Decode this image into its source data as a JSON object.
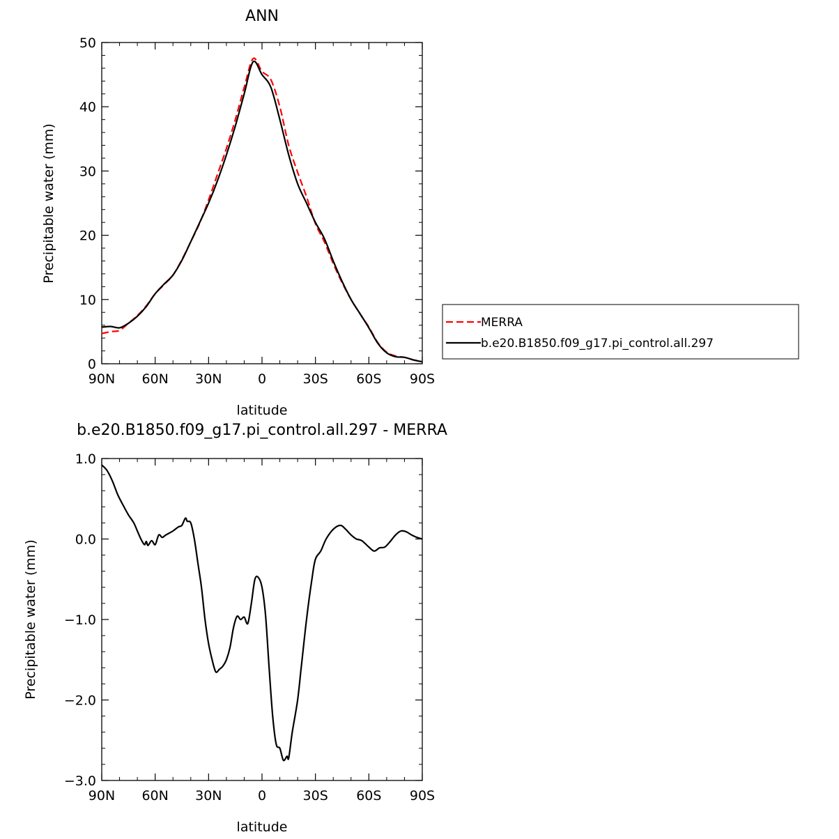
{
  "chart_data": [
    {
      "type": "line",
      "title": "ANN",
      "xlabel": "latitude",
      "ylabel": "Precipitable water (mm)",
      "xlim": [
        90,
        -90
      ],
      "ylim": [
        0,
        50
      ],
      "x_ticks": [
        90,
        60,
        30,
        0,
        -30,
        -60,
        -90
      ],
      "x_tick_labels": [
        "90N",
        "60N",
        "30N",
        "0",
        "30S",
        "60S",
        "90S"
      ],
      "y_ticks": [
        0,
        10,
        20,
        30,
        40,
        50
      ],
      "y_tick_labels": [
        "0",
        "10",
        "20",
        "30",
        "40",
        "50"
      ],
      "grid": false,
      "legend_position": "right-outside",
      "series": [
        {
          "name": "MERRA",
          "style": "dashed",
          "color": "#ff0000",
          "x": [
            90,
            85,
            80,
            75,
            70,
            65,
            60,
            55,
            50,
            45,
            40,
            35,
            30,
            25,
            20,
            15,
            10,
            5,
            0,
            -5,
            -10,
            -15,
            -20,
            -25,
            -30,
            -35,
            -40,
            -45,
            -50,
            -55,
            -60,
            -65,
            -70,
            -75,
            -80,
            -85,
            -90
          ],
          "values": [
            4.7,
            5.0,
            5.2,
            6.3,
            7.5,
            9.0,
            10.9,
            12.3,
            13.8,
            16.2,
            19.0,
            21.9,
            25.5,
            29.5,
            33.5,
            38.0,
            43.0,
            47.5,
            45.5,
            44.2,
            40.0,
            34.0,
            29.8,
            26.0,
            21.8,
            19.0,
            15.6,
            12.6,
            10.0,
            7.8,
            5.7,
            3.3,
            1.8,
            1.2,
            1.0,
            0.6,
            0.3
          ]
        },
        {
          "name": "b.e20.B1850.f09_g17.pi_control.all.297",
          "style": "solid",
          "color": "#000000",
          "x": [
            90,
            85,
            80,
            75,
            70,
            65,
            60,
            55,
            50,
            45,
            40,
            35,
            30,
            25,
            20,
            15,
            10,
            5,
            0,
            -5,
            -10,
            -15,
            -20,
            -25,
            -30,
            -35,
            -40,
            -45,
            -50,
            -55,
            -60,
            -65,
            -70,
            -75,
            -80,
            -85,
            -90
          ],
          "values": [
            5.7,
            5.8,
            5.6,
            6.3,
            7.4,
            8.9,
            10.9,
            12.4,
            13.8,
            16.1,
            19.0,
            22.0,
            25.0,
            28.5,
            32.5,
            37.0,
            42.0,
            47.0,
            45.0,
            43.0,
            38.0,
            32.5,
            28.0,
            25.0,
            22.0,
            19.5,
            16.0,
            12.8,
            10.0,
            7.8,
            5.6,
            3.2,
            1.7,
            1.1,
            1.0,
            0.6,
            0.3
          ]
        }
      ]
    },
    {
      "type": "line",
      "title": "b.e20.B1850.f09_g17.pi_control.all.297 - MERRA",
      "xlabel": "latitude",
      "ylabel": "Precipitable water (mm)",
      "xlim": [
        90,
        -90
      ],
      "ylim": [
        -3.0,
        1.0
      ],
      "x_ticks": [
        90,
        60,
        30,
        0,
        -30,
        -60,
        -90
      ],
      "x_tick_labels": [
        "90N",
        "60N",
        "30N",
        "0",
        "30S",
        "60S",
        "90S"
      ],
      "y_ticks": [
        -3.0,
        -2.0,
        -1.0,
        0.0,
        1.0
      ],
      "y_tick_labels": [
        "−3.0",
        "−2.0",
        "−1.0",
        "0.0",
        "1.0"
      ],
      "grid": false,
      "series": [
        {
          "style": "solid",
          "color": "#000000",
          "x": [
            90,
            87,
            84,
            81,
            78,
            75,
            72,
            70,
            68,
            66,
            65,
            64,
            62,
            60,
            58,
            56,
            54,
            50,
            47,
            45,
            43,
            42,
            40,
            38,
            36,
            34,
            32,
            30,
            28,
            26,
            24,
            22,
            20,
            18,
            16,
            14,
            12,
            10,
            8,
            6,
            4,
            2,
            0,
            -2,
            -4,
            -6,
            -8,
            -10,
            -12,
            -14,
            -15,
            -17,
            -20,
            -22,
            -25,
            -28,
            -30,
            -33,
            -36,
            -40,
            -44,
            -47,
            -50,
            -53,
            -56,
            -60,
            -63,
            -66,
            -69,
            -72,
            -75,
            -78,
            -81,
            -84,
            -87,
            -90
          ],
          "values": [
            0.92,
            0.85,
            0.72,
            0.55,
            0.42,
            0.3,
            0.2,
            0.1,
            0.0,
            -0.07,
            -0.03,
            -0.08,
            -0.02,
            -0.07,
            0.05,
            0.02,
            0.05,
            0.1,
            0.15,
            0.17,
            0.26,
            0.22,
            0.2,
            0.0,
            -0.3,
            -0.6,
            -1.0,
            -1.3,
            -1.5,
            -1.65,
            -1.62,
            -1.58,
            -1.5,
            -1.35,
            -1.1,
            -0.96,
            -1.0,
            -0.97,
            -1.05,
            -0.8,
            -0.5,
            -0.48,
            -0.6,
            -0.95,
            -1.6,
            -2.2,
            -2.55,
            -2.6,
            -2.75,
            -2.7,
            -2.72,
            -2.4,
            -2.0,
            -1.6,
            -1.0,
            -0.5,
            -0.25,
            -0.15,
            0.0,
            0.12,
            0.17,
            0.12,
            0.05,
            0.0,
            -0.02,
            -0.1,
            -0.15,
            -0.11,
            -0.1,
            -0.03,
            0.05,
            0.1,
            0.09,
            0.05,
            0.02,
            0.0
          ]
        }
      ]
    }
  ]
}
